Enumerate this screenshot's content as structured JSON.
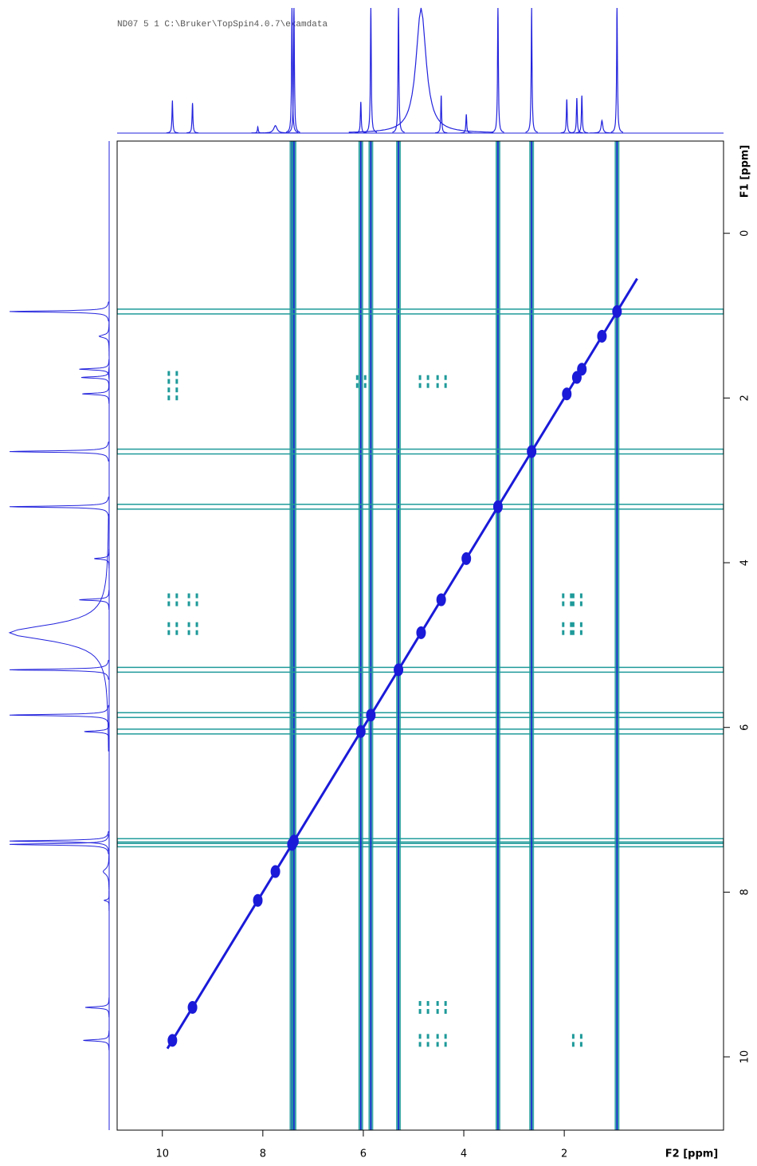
{
  "chart_data": {
    "type": "nmr2d",
    "header": "ND07  5  1  C:\\Bruker\\TopSpin4.0.7\\examdata",
    "x_label": "F2 [ppm]",
    "y_label": "F1 [ppm]",
    "xlim": [
      10.9,
      -1.17
    ],
    "ylim": [
      -1.12,
      10.89
    ],
    "xticks": [
      10,
      8,
      6,
      4,
      2
    ],
    "yticks": [
      0,
      2,
      4,
      6,
      8,
      10
    ],
    "trace_color": "#2222dd",
    "diagonal_color": "#1a1ad8",
    "cross_color": "#1f9a9a",
    "peaks": {
      "ppm": [
        9.8,
        9.4,
        8.1,
        7.75,
        7.42,
        7.38,
        6.05,
        5.85,
        5.3,
        4.85,
        4.45,
        3.95,
        3.32,
        2.65,
        1.95,
        1.75,
        1.65,
        1.25,
        0.95
      ],
      "height": [
        26,
        24,
        5,
        6,
        100,
        100,
        25,
        100,
        100,
        100,
        30,
        15,
        100,
        100,
        27,
        28,
        30,
        10,
        100
      ],
      "width": [
        0.01,
        0.01,
        0.01,
        0.04,
        0.01,
        0.01,
        0.01,
        0.01,
        0.01,
        0.12,
        0.01,
        0.01,
        0.01,
        0.01,
        0.01,
        0.01,
        0.01,
        0.02,
        0.01
      ],
      "streak": [
        false,
        false,
        false,
        false,
        true,
        true,
        true,
        true,
        true,
        false,
        false,
        false,
        true,
        true,
        false,
        false,
        false,
        false,
        true
      ]
    },
    "cross_peaks": {
      "f2": [
        9.8,
        9.8,
        9.8,
        9.8,
        9.4,
        9.4,
        4.8,
        4.45,
        4.8,
        4.45,
        1.75,
        4.8,
        4.45,
        6.05,
        1.95,
        1.75,
        1.95,
        1.75
      ],
      "f1": [
        1.75,
        1.95,
        4.45,
        4.8,
        4.45,
        4.8,
        9.4,
        9.4,
        9.8,
        9.8,
        9.8,
        1.8,
        1.8,
        1.8,
        4.45,
        4.45,
        4.8,
        4.8
      ]
    }
  }
}
